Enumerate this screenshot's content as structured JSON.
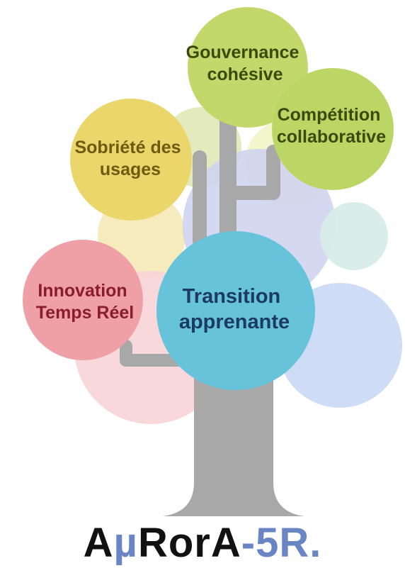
{
  "colors": {
    "trunk": "#a8a8a8",
    "brand_dark": "#111111",
    "brand_accent": "#6a85c4"
  },
  "branches": [
    {
      "label_lines": [
        "Gouvernance",
        "cohésive"
      ],
      "fill": "#c2d86a",
      "text_color": "#3a4a0a"
    },
    {
      "label_lines": [
        "Compétition",
        "collaborative"
      ],
      "fill": "#bcd666",
      "text_color": "#3a4a0a"
    },
    {
      "label_lines": [
        "Sobriété des",
        "usages"
      ],
      "fill": "#ead66a",
      "text_color": "#6e5a10"
    },
    {
      "label_lines": [
        "Innovation",
        "Temps Réel"
      ],
      "fill": "#eea0a6",
      "text_color": "#8a1c2c"
    },
    {
      "label_lines": [
        "Transition",
        "apprenante"
      ],
      "fill": "#67c3da",
      "text_color": "#1c3a66"
    }
  ],
  "brand": {
    "a": "A",
    "mu": "µ",
    "rora": "RorA",
    "suffix": "-5R."
  }
}
